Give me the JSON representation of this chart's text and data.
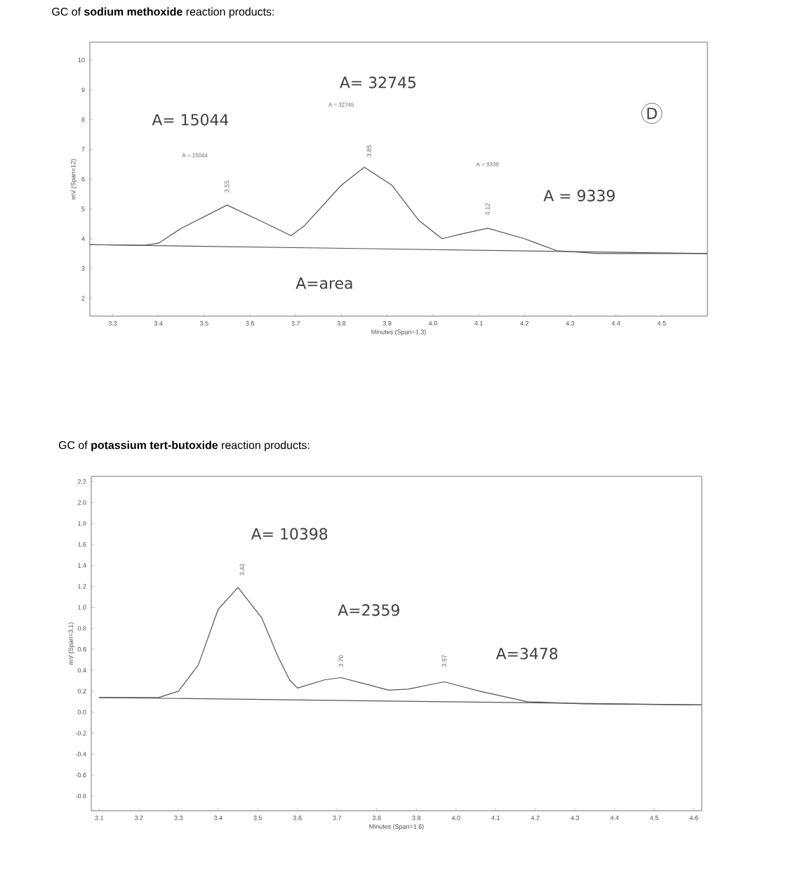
{
  "chart_data": [
    {
      "type": "line",
      "title": "GC of **sodium methoxide** reaction products:",
      "xlabel": "Minutes (Span=1.3)",
      "ylabel": "mV (Span=12)",
      "marker": "none",
      "line_style": "solid",
      "xlim": [
        3.25,
        4.6
      ],
      "ylim": [
        1.4,
        10.6
      ],
      "xticks": [
        3.3,
        3.4,
        3.5,
        3.6,
        3.7,
        3.8,
        3.9,
        {
          "value": 4.0,
          "label": "4.0"
        },
        4.1,
        4.2,
        4.3,
        4.4,
        4.5
      ],
      "yticks": [
        2,
        3,
        4,
        5,
        6,
        7,
        8,
        9,
        10
      ],
      "series": [
        {
          "color": "#555555",
          "x": [
            3.25,
            3.37,
            3.4,
            3.45,
            3.55,
            3.63,
            3.69,
            3.72,
            3.8,
            3.85,
            3.91,
            3.97,
            4.02,
            4.06,
            4.12,
            4.2,
            4.27,
            4.36,
            4.6
          ],
          "values": [
            3.8,
            3.78,
            3.85,
            4.35,
            5.13,
            4.55,
            4.1,
            4.45,
            5.8,
            6.4,
            5.8,
            4.6,
            4.0,
            4.15,
            4.35,
            4.0,
            3.6,
            3.5,
            3.5
          ]
        },
        {
          "color": "#555555",
          "x": [
            3.25,
            4.6
          ],
          "values": [
            3.8,
            3.5
          ]
        }
      ],
      "annotations": [
        "A = 15044",
        "A = 32745",
        "A = 9339",
        "3.55",
        "3.85",
        "4.12",
        "A= 15044",
        "A= 32745",
        "A = 9339",
        "A=area",
        "D"
      ]
    },
    {
      "type": "line",
      "title": "GC of **potassium tert-butoxide** reaction products:",
      "xlabel": "Minutes (Span=1.6)",
      "ylabel": "mV (Span=3.1)",
      "marker": "none",
      "line_style": "solid",
      "xlim": [
        3.08,
        4.62
      ],
      "ylim": [
        -0.94,
        2.25
      ],
      "xticks": [
        3.1,
        3.2,
        3.3,
        3.4,
        3.5,
        3.6,
        3.7,
        3.8,
        3.9,
        {
          "value": 4.0,
          "label": "4.0"
        },
        4.1,
        4.2,
        4.3,
        4.4,
        4.5,
        4.6
      ],
      "yticks": [
        {
          "value": 2.2,
          "label": "2.2"
        },
        {
          "value": 2.0,
          "label": "2.0"
        },
        {
          "value": 1.8,
          "label": "1.8"
        },
        {
          "value": 1.6,
          "label": "1.6"
        },
        {
          "value": 1.4,
          "label": "1.4"
        },
        {
          "value": 1.2,
          "label": "1.2"
        },
        {
          "value": 1.0,
          "label": "1.0"
        },
        {
          "value": 0.8,
          "label": "0.8"
        },
        {
          "value": 0.6,
          "label": "0.6"
        },
        {
          "value": 0.4,
          "label": "0.4"
        },
        {
          "value": 0.2,
          "label": "0.2"
        },
        {
          "value": 0.0,
          "label": "0.0"
        },
        {
          "value": -0.2,
          "label": "-0.2"
        },
        {
          "value": -0.4,
          "label": "-0.4"
        },
        {
          "value": -0.6,
          "label": "-0.6"
        },
        {
          "value": -0.8,
          "label": "-0.8"
        }
      ],
      "series": [
        {
          "color": "#555555",
          "x": [
            3.1,
            3.25,
            3.3,
            3.35,
            3.4,
            3.45,
            3.51,
            3.55,
            3.58,
            3.6,
            3.67,
            3.71,
            3.77,
            3.83,
            3.88,
            3.97,
            4.06,
            4.18,
            4.32,
            4.62
          ],
          "values": [
            0.14,
            0.14,
            0.2,
            0.45,
            0.98,
            1.19,
            0.9,
            0.54,
            0.31,
            0.23,
            0.31,
            0.33,
            0.27,
            0.21,
            0.22,
            0.29,
            0.2,
            0.1,
            0.08,
            0.07
          ]
        },
        {
          "color": "#555555",
          "x": [
            3.1,
            4.62
          ],
          "values": [
            0.14,
            0.07
          ]
        }
      ],
      "annotations": [
        "3.42",
        "3.70",
        "3.97",
        "A= 10398",
        "A=2359",
        "A=3478"
      ]
    }
  ]
}
